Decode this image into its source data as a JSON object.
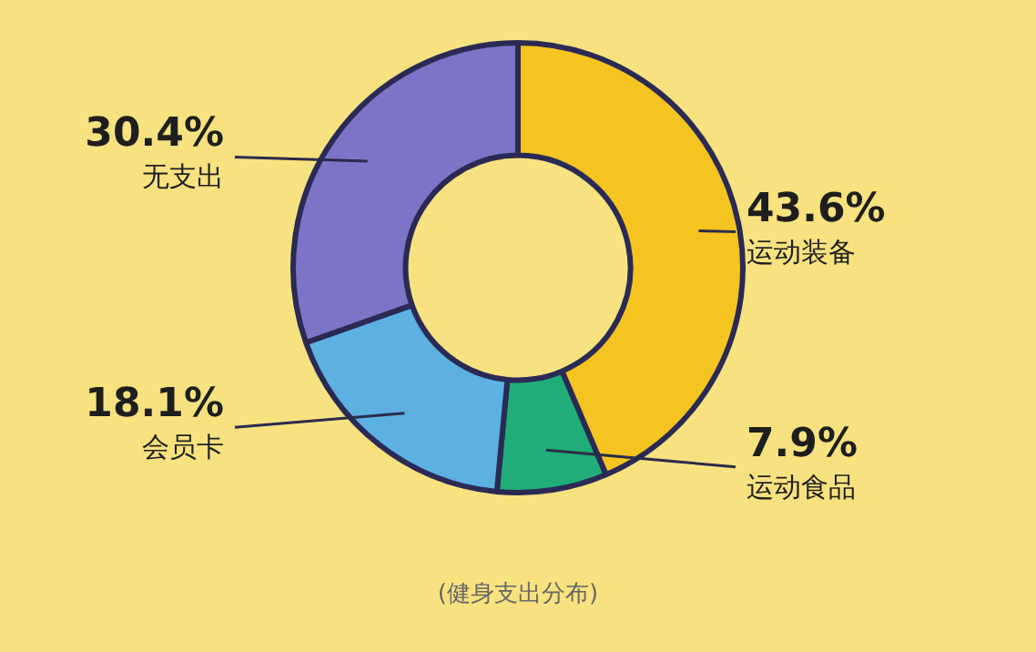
{
  "chart_data": {
    "type": "donut",
    "categories": [
      "运动装备",
      "运动食品",
      "会员卡",
      "无支出"
    ],
    "values": [
      43.6,
      7.9,
      18.1,
      30.4
    ],
    "value_labels": [
      "43.6%",
      "7.9%",
      "18.1%",
      "30.4%"
    ],
    "colors": [
      "#f6c420",
      "#1fae78",
      "#5cb0e2",
      "#7c74c6"
    ],
    "annotations": [
      "(健身支出分布)"
    ]
  }
}
